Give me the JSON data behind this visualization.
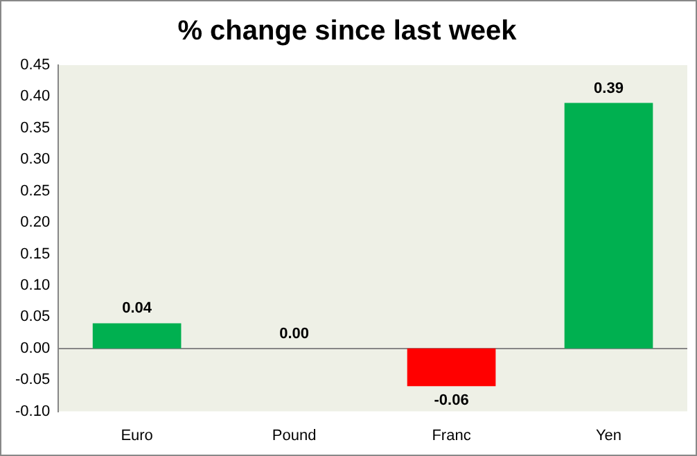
{
  "chart_data": {
    "type": "bar",
    "title": "% change since last week",
    "categories": [
      "Euro",
      "Pound",
      "Franc",
      "Yen"
    ],
    "values": [
      0.04,
      0,
      -0.06,
      0.39
    ],
    "colors": [
      "#00b050",
      "#00b050",
      "#ff0000",
      "#00b050"
    ],
    "value_labels": [
      "0.04",
      "0.00",
      "-0.06",
      "0.39"
    ],
    "ylim": [
      -0.1,
      0.45
    ],
    "yticks": [
      {
        "value": -0.1,
        "label": "-0.10"
      },
      {
        "value": -0.05,
        "label": "-0.05"
      },
      {
        "value": 0,
        "label": "0.00"
      },
      {
        "value": 0.05,
        "label": "0.05"
      },
      {
        "value": 0.1,
        "label": "0.10"
      },
      {
        "value": 0.15,
        "label": "0.15"
      },
      {
        "value": 0.2,
        "label": "0.20"
      },
      {
        "value": 0.25,
        "label": "0.25"
      },
      {
        "value": 0.3,
        "label": "0.30"
      },
      {
        "value": 0.35,
        "label": "0.35"
      },
      {
        "value": 0.4,
        "label": "0.40"
      },
      {
        "value": 0.45,
        "label": "0.45"
      }
    ],
    "legend": false
  }
}
